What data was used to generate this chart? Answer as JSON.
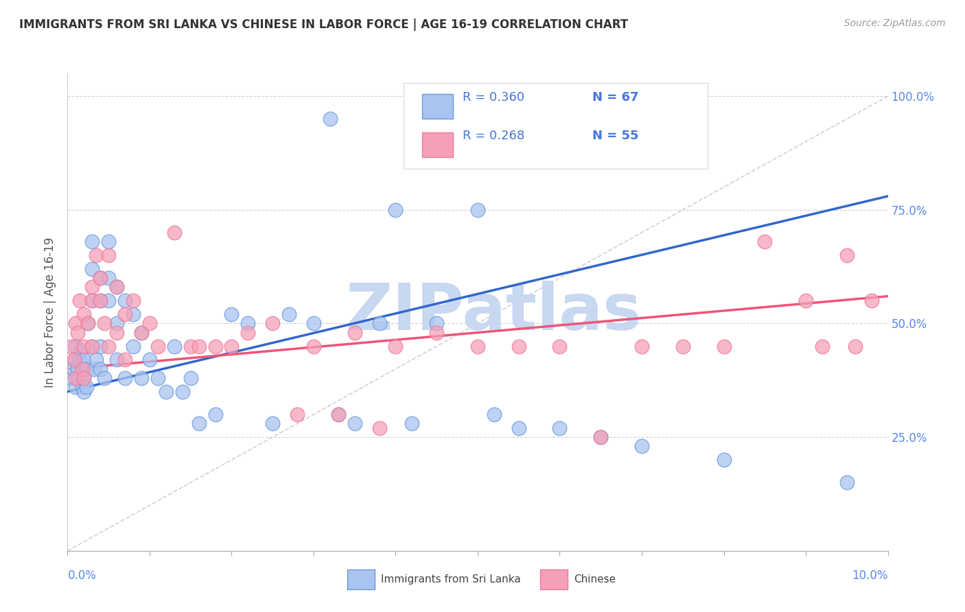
{
  "title": "IMMIGRANTS FROM SRI LANKA VS CHINESE IN LABOR FORCE | AGE 16-19 CORRELATION CHART",
  "source": "Source: ZipAtlas.com",
  "ylabel": "In Labor Force | Age 16-19",
  "xlim": [
    0.0,
    0.1
  ],
  "ylim": [
    0.0,
    1.05
  ],
  "sri_lanka_color": "#aac4f0",
  "chinese_color": "#f5a0b8",
  "sri_lanka_edge": "#6699dd",
  "chinese_edge": "#ee7799",
  "sri_lanka_line_color": "#3366cc",
  "chinese_line_color": "#ee5577",
  "diagonal_color": "#cccccc",
  "watermark_text": "ZIPatlas",
  "watermark_color": "#c8d8f0",
  "legend_R1": "R = 0.360",
  "legend_N1": "N = 67",
  "legend_R2": "R = 0.268",
  "legend_N2": "N = 55",
  "sri_lanka_label": "Immigrants from Sri Lanka",
  "chinese_label": "Chinese",
  "sri_lanka_x": [
    0.0005,
    0.0007,
    0.001,
    0.001,
    0.001,
    0.0012,
    0.0013,
    0.0015,
    0.0016,
    0.0018,
    0.002,
    0.002,
    0.002,
    0.0022,
    0.0023,
    0.0025,
    0.003,
    0.003,
    0.003,
    0.003,
    0.0032,
    0.0035,
    0.004,
    0.004,
    0.004,
    0.004,
    0.0045,
    0.005,
    0.005,
    0.005,
    0.006,
    0.006,
    0.006,
    0.007,
    0.007,
    0.008,
    0.008,
    0.009,
    0.009,
    0.01,
    0.011,
    0.012,
    0.013,
    0.014,
    0.015,
    0.016,
    0.018,
    0.02,
    0.022,
    0.025,
    0.027,
    0.03,
    0.032,
    0.033,
    0.035,
    0.038,
    0.04,
    0.042,
    0.045,
    0.05,
    0.052,
    0.055,
    0.06,
    0.065,
    0.07,
    0.08,
    0.095
  ],
  "sri_lanka_y": [
    0.38,
    0.4,
    0.42,
    0.45,
    0.36,
    0.4,
    0.38,
    0.42,
    0.44,
    0.36,
    0.42,
    0.38,
    0.35,
    0.4,
    0.36,
    0.5,
    0.68,
    0.62,
    0.55,
    0.45,
    0.4,
    0.42,
    0.6,
    0.55,
    0.45,
    0.4,
    0.38,
    0.68,
    0.6,
    0.55,
    0.58,
    0.5,
    0.42,
    0.55,
    0.38,
    0.52,
    0.45,
    0.48,
    0.38,
    0.42,
    0.38,
    0.35,
    0.45,
    0.35,
    0.38,
    0.28,
    0.3,
    0.52,
    0.5,
    0.28,
    0.52,
    0.5,
    0.95,
    0.3,
    0.28,
    0.5,
    0.75,
    0.28,
    0.5,
    0.75,
    0.3,
    0.27,
    0.27,
    0.25,
    0.23,
    0.2,
    0.15
  ],
  "chinese_x": [
    0.0005,
    0.0008,
    0.001,
    0.001,
    0.0012,
    0.0015,
    0.0018,
    0.002,
    0.002,
    0.002,
    0.0025,
    0.003,
    0.003,
    0.003,
    0.0035,
    0.004,
    0.004,
    0.0045,
    0.005,
    0.005,
    0.006,
    0.006,
    0.007,
    0.007,
    0.008,
    0.009,
    0.01,
    0.011,
    0.013,
    0.015,
    0.016,
    0.018,
    0.02,
    0.022,
    0.025,
    0.028,
    0.03,
    0.033,
    0.035,
    0.038,
    0.04,
    0.045,
    0.05,
    0.055,
    0.06,
    0.065,
    0.07,
    0.075,
    0.08,
    0.085,
    0.09,
    0.092,
    0.095,
    0.096,
    0.098
  ],
  "chinese_y": [
    0.45,
    0.42,
    0.5,
    0.38,
    0.48,
    0.55,
    0.4,
    0.52,
    0.45,
    0.38,
    0.5,
    0.58,
    0.55,
    0.45,
    0.65,
    0.6,
    0.55,
    0.5,
    0.65,
    0.45,
    0.58,
    0.48,
    0.52,
    0.42,
    0.55,
    0.48,
    0.5,
    0.45,
    0.7,
    0.45,
    0.45,
    0.45,
    0.45,
    0.48,
    0.5,
    0.3,
    0.45,
    0.3,
    0.48,
    0.27,
    0.45,
    0.48,
    0.45,
    0.45,
    0.45,
    0.25,
    0.45,
    0.45,
    0.45,
    0.68,
    0.55,
    0.45,
    0.65,
    0.45,
    0.55
  ]
}
